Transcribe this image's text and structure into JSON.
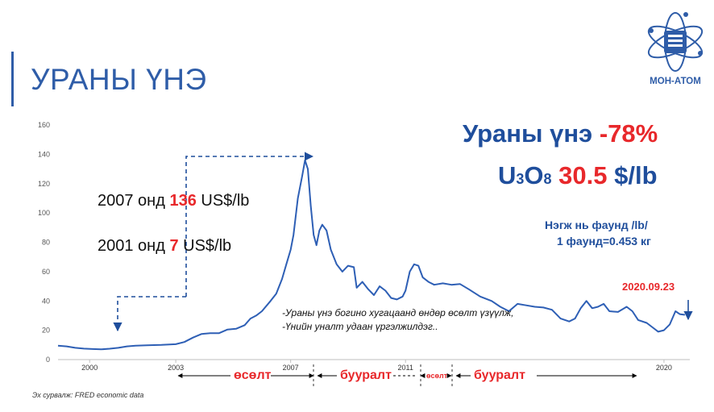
{
  "page_title": "УРАНЫ ҮНЭ",
  "logo": {
    "text": "МОН-АТОМ",
    "icon": "atom-logo-icon"
  },
  "headline": {
    "line1_prefix": "Ураны үнэ",
    "line1_change": "-78%",
    "formula_u": "U",
    "formula_3": "3",
    "formula_o": "O",
    "formula_8": "8",
    "price_value": "30.5",
    "price_unit": "$/lb"
  },
  "unit_note": {
    "line1": "Нэгж нь фаунд /lb/",
    "line2": "1 фаунд=0.453 кг"
  },
  "annotations": {
    "a2007_prefix": "2007 онд",
    "a2007_value": "136",
    "a2007_unit": "US$/lb",
    "a2001_prefix": "2001 онд",
    "a2001_value": "7",
    "a2001_unit": "US$/lb",
    "date_label": "2020.09.23",
    "note1": "-Ураны үнэ богино хугацаанд өндөр өсөлт үзүүлж,",
    "note2": "-Үнийн уналт удаан үргэлжилдэг.."
  },
  "phases": [
    {
      "label": "өсөлт"
    },
    {
      "label": "бууралт"
    },
    {
      "label": "өсөлт"
    },
    {
      "label": "бууралт"
    }
  ],
  "source": "Эх сурвалж: FRED economic data",
  "colors": {
    "line": "#2e5fb5",
    "accent_red": "#e8282b",
    "title_blue": "#2f5da8",
    "headline_blue": "#1f4e9c"
  },
  "chart_data": {
    "type": "line",
    "title": "",
    "xlabel": "",
    "ylabel": "",
    "ylim": [
      0,
      160
    ],
    "yticks": [
      0,
      20,
      40,
      60,
      80,
      100,
      120,
      140,
      160
    ],
    "xticks": [
      {
        "label": "2000",
        "x": 2000
      },
      {
        "label": "2003",
        "x": 2003
      },
      {
        "label": "2007",
        "x": 2007
      },
      {
        "label": "2011",
        "x": 2011
      },
      {
        "label": "2020",
        "x": 2020
      }
    ],
    "series": [
      {
        "name": "",
        "points": [
          [
            1998.9,
            9.5
          ],
          [
            1999.2,
            9.0
          ],
          [
            1999.5,
            8.0
          ],
          [
            1999.8,
            7.5
          ],
          [
            2000.1,
            7.2
          ],
          [
            2000.4,
            7.0
          ],
          [
            2000.7,
            7.4
          ],
          [
            2001.0,
            8.0
          ],
          [
            2001.3,
            9.0
          ],
          [
            2001.6,
            9.5
          ],
          [
            2002.0,
            9.8
          ],
          [
            2002.5,
            10.0
          ],
          [
            2003.0,
            10.5
          ],
          [
            2003.3,
            12.0
          ],
          [
            2003.6,
            15.0
          ],
          [
            2003.9,
            17.5
          ],
          [
            2004.2,
            18.0
          ],
          [
            2004.5,
            18.0
          ],
          [
            2004.8,
            20.5
          ],
          [
            2005.1,
            21.0
          ],
          [
            2005.4,
            23.5
          ],
          [
            2005.6,
            28.0
          ],
          [
            2005.8,
            30.0
          ],
          [
            2006.0,
            33.0
          ],
          [
            2006.3,
            40.0
          ],
          [
            2006.5,
            45.0
          ],
          [
            2006.7,
            55.0
          ],
          [
            2006.85,
            65.0
          ],
          [
            2007.0,
            75.0
          ],
          [
            2007.1,
            85.0
          ],
          [
            2007.25,
            110.0
          ],
          [
            2007.4,
            125.0
          ],
          [
            2007.5,
            136.0
          ],
          [
            2007.6,
            130.0
          ],
          [
            2007.7,
            105.0
          ],
          [
            2007.8,
            85.0
          ],
          [
            2007.9,
            78.0
          ],
          [
            2008.0,
            88.0
          ],
          [
            2008.1,
            92.0
          ],
          [
            2008.25,
            88.0
          ],
          [
            2008.4,
            75.0
          ],
          [
            2008.6,
            65.0
          ],
          [
            2008.8,
            60.0
          ],
          [
            2009.0,
            64.0
          ],
          [
            2009.2,
            63.0
          ],
          [
            2009.3,
            49.0
          ],
          [
            2009.5,
            53.0
          ],
          [
            2009.7,
            48.0
          ],
          [
            2009.9,
            44.0
          ],
          [
            2010.1,
            50.0
          ],
          [
            2010.3,
            47.0
          ],
          [
            2010.5,
            42.0
          ],
          [
            2010.7,
            41.0
          ],
          [
            2010.9,
            43.0
          ],
          [
            2011.0,
            47.0
          ],
          [
            2011.15,
            60.0
          ],
          [
            2011.3,
            65.0
          ],
          [
            2011.45,
            64.0
          ],
          [
            2011.6,
            56.0
          ],
          [
            2011.8,
            53.0
          ],
          [
            2012.0,
            51.0
          ],
          [
            2012.3,
            52.0
          ],
          [
            2012.6,
            51.0
          ],
          [
            2012.9,
            51.5
          ],
          [
            2013.2,
            48.0
          ],
          [
            2013.6,
            43.0
          ],
          [
            2014.0,
            40.0
          ],
          [
            2014.3,
            36.0
          ],
          [
            2014.6,
            33.0
          ],
          [
            2014.9,
            38.0
          ],
          [
            2015.2,
            37.0
          ],
          [
            2015.5,
            36.0
          ],
          [
            2015.8,
            35.5
          ],
          [
            2016.1,
            34.0
          ],
          [
            2016.4,
            28.0
          ],
          [
            2016.7,
            26.0
          ],
          [
            2016.9,
            28.0
          ],
          [
            2017.1,
            35.0
          ],
          [
            2017.3,
            40.0
          ],
          [
            2017.5,
            35.0
          ],
          [
            2017.7,
            36.0
          ],
          [
            2017.9,
            38.0
          ],
          [
            2018.1,
            33.0
          ],
          [
            2018.4,
            32.5
          ],
          [
            2018.7,
            36.0
          ],
          [
            2018.9,
            33.0
          ],
          [
            2019.1,
            27.0
          ],
          [
            2019.4,
            25.0
          ],
          [
            2019.6,
            22.0
          ],
          [
            2019.8,
            19.0
          ],
          [
            2020.0,
            20.0
          ],
          [
            2020.2,
            24.0
          ],
          [
            2020.4,
            33.0
          ],
          [
            2020.55,
            31.0
          ],
          [
            2020.73,
            30.5
          ]
        ]
      }
    ]
  }
}
